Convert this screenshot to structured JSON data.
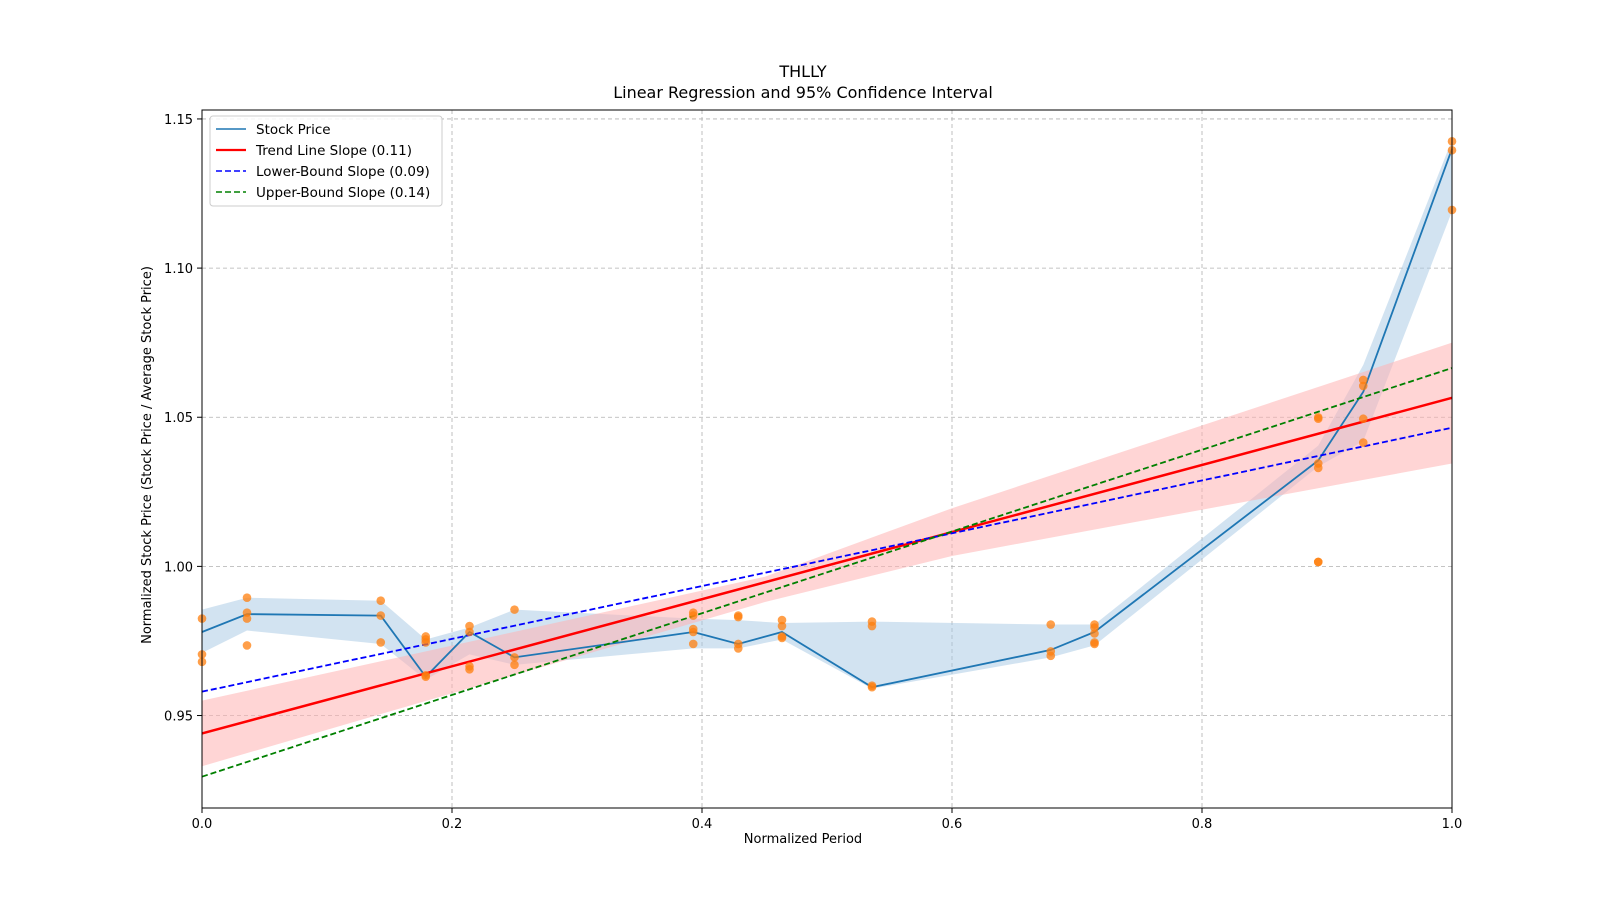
{
  "chart_data": {
    "type": "line",
    "title": "THLLY",
    "subtitle": "Linear Regression and 95% Confidence Interval",
    "xlabel": "Normalized Period",
    "ylabel": "Normalized Stock Price (Stock Price / Average Stock Price)",
    "xlim": [
      0.0,
      1.0
    ],
    "ylim": [
      0.919,
      1.153
    ],
    "xticks": [
      0.0,
      0.2,
      0.4,
      0.6,
      0.8,
      1.0
    ],
    "xtick_labels": [
      "0.0",
      "0.2",
      "0.4",
      "0.6",
      "0.8",
      "1.0"
    ],
    "yticks": [
      0.95,
      1.0,
      1.05,
      1.1,
      1.15
    ],
    "ytick_labels": [
      "0.95",
      "1.00",
      "1.05",
      "1.10",
      "1.15"
    ],
    "grid": true,
    "legend_position": "top-left",
    "legend": [
      {
        "label": "Stock Price",
        "color": "#1f77b4",
        "style": "solid"
      },
      {
        "label": "Trend Line Slope (0.11)",
        "color": "#ff0000",
        "style": "solid"
      },
      {
        "label": "Lower-Bound Slope (0.09)",
        "color": "#0000ff",
        "style": "dashed"
      },
      {
        "label": "Upper-Bound Slope (0.14)",
        "color": "#008000",
        "style": "dashed"
      }
    ],
    "stock_price": {
      "x": [
        0.0,
        0.036,
        0.143,
        0.179,
        0.214,
        0.25,
        0.393,
        0.429,
        0.464,
        0.536,
        0.679,
        0.714,
        0.893,
        0.929,
        1.0
      ],
      "y": [
        0.978,
        0.984,
        0.9835,
        0.963,
        0.978,
        0.9695,
        0.978,
        0.974,
        0.978,
        0.9595,
        0.972,
        0.978,
        1.0355,
        1.0585,
        1.14
      ],
      "ci_lower": [
        0.971,
        0.9785,
        0.974,
        0.962,
        0.9705,
        0.967,
        0.9725,
        0.9725,
        0.9755,
        0.959,
        0.9695,
        0.9735,
        1.0335,
        1.042,
        1.119
      ],
      "ci_upper": [
        0.9855,
        0.9895,
        0.9885,
        0.9755,
        0.9795,
        0.9855,
        0.9825,
        0.982,
        0.981,
        0.9815,
        0.9805,
        0.9805,
        1.0405,
        1.0675,
        1.143
      ]
    },
    "scatter_points": [
      [
        0.0,
        0.9825
      ],
      [
        0.0,
        0.9705
      ],
      [
        0.0,
        0.968
      ],
      [
        0.036,
        0.9895
      ],
      [
        0.036,
        0.9845
      ],
      [
        0.036,
        0.9825
      ],
      [
        0.036,
        0.9735
      ],
      [
        0.143,
        0.9885
      ],
      [
        0.143,
        0.9835
      ],
      [
        0.143,
        0.9745
      ],
      [
        0.179,
        0.9765
      ],
      [
        0.179,
        0.9755
      ],
      [
        0.179,
        0.9745
      ],
      [
        0.179,
        0.9635
      ],
      [
        0.179,
        0.963
      ],
      [
        0.214,
        0.98
      ],
      [
        0.214,
        0.978
      ],
      [
        0.214,
        0.9665
      ],
      [
        0.214,
        0.9655
      ],
      [
        0.25,
        0.9855
      ],
      [
        0.25,
        0.9695
      ],
      [
        0.25,
        0.967
      ],
      [
        0.393,
        0.9845
      ],
      [
        0.393,
        0.9835
      ],
      [
        0.393,
        0.979
      ],
      [
        0.393,
        0.978
      ],
      [
        0.393,
        0.974
      ],
      [
        0.429,
        0.9835
      ],
      [
        0.429,
        0.983
      ],
      [
        0.429,
        0.974
      ],
      [
        0.429,
        0.9725
      ],
      [
        0.464,
        0.982
      ],
      [
        0.464,
        0.98
      ],
      [
        0.464,
        0.9765
      ],
      [
        0.464,
        0.976
      ],
      [
        0.536,
        0.9815
      ],
      [
        0.536,
        0.98
      ],
      [
        0.536,
        0.96
      ],
      [
        0.536,
        0.9595
      ],
      [
        0.679,
        0.9805
      ],
      [
        0.679,
        0.9715
      ],
      [
        0.679,
        0.97
      ],
      [
        0.714,
        0.9805
      ],
      [
        0.714,
        0.9795
      ],
      [
        0.714,
        0.9775
      ],
      [
        0.714,
        0.9745
      ],
      [
        0.714,
        0.974
      ],
      [
        0.893,
        1.05
      ],
      [
        0.893,
        1.0495
      ],
      [
        0.893,
        1.0345
      ],
      [
        0.893,
        1.033
      ],
      [
        0.893,
        1.0015
      ],
      [
        0.893,
        1.0015
      ],
      [
        0.929,
        1.0625
      ],
      [
        0.929,
        1.0605
      ],
      [
        0.929,
        1.0495
      ],
      [
        0.929,
        1.0415
      ],
      [
        1.0,
        1.1425
      ],
      [
        1.0,
        1.1395
      ],
      [
        1.0,
        1.1195
      ]
    ],
    "trend_line": {
      "x": [
        0.0,
        1.0
      ],
      "y": [
        0.944,
        1.0565
      ]
    },
    "trend_band": {
      "x": [
        0.0,
        0.45,
        0.6,
        1.0
      ],
      "lower": [
        0.933,
        0.988,
        1.0035,
        1.0345
      ],
      "upper": [
        0.955,
        0.9965,
        1.0195,
        1.075
      ]
    },
    "lower_bound_line": {
      "x": [
        0.0,
        1.0
      ],
      "y": [
        0.958,
        1.0465
      ]
    },
    "upper_bound_line": {
      "x": [
        0.0,
        1.0
      ],
      "y": [
        0.9295,
        1.0665
      ]
    },
    "colors": {
      "stock_line": "#1f77b4",
      "stock_band": "#a6c8e3",
      "scatter": "#ff7f0e",
      "trend": "#ff0000",
      "trend_band": "#ffb3b3",
      "lower_bound": "#0000ff",
      "upper_bound": "#008000",
      "grid": "#b0b0b0"
    }
  }
}
